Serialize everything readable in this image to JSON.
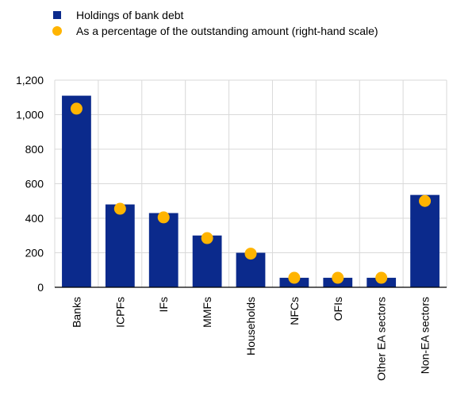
{
  "legend": {
    "bar_label": "Holdings of bank debt",
    "dot_label": "As a percentage of the outstanding amount (right-hand scale)"
  },
  "colors": {
    "bar": "#0b2a8c",
    "dot": "#ffb400",
    "grid": "#d9d9d9",
    "axis": "#000000"
  },
  "chart_data": {
    "type": "bar",
    "title": "",
    "xlabel": "",
    "ylabel": "",
    "categories": [
      "Banks",
      "ICPFs",
      "IFs",
      "MMFs",
      "Households",
      "NFCs",
      "OFIs",
      "Other EA sectors",
      "Non-EA sectors"
    ],
    "ylim": [
      0,
      1200
    ],
    "yticks": [
      "0",
      "200",
      "400",
      "600",
      "800",
      "1,000",
      "1,200"
    ],
    "ytick_values": [
      0,
      200,
      400,
      600,
      800,
      1000,
      1200
    ],
    "grid": true,
    "legend_position": "top-left",
    "series": [
      {
        "name": "Holdings of bank debt",
        "type": "bar",
        "values": [
          1110,
          480,
          430,
          300,
          200,
          55,
          55,
          55,
          535
        ]
      },
      {
        "name": "As a percentage of the outstanding amount (right-hand scale)",
        "type": "scatter",
        "values": [
          1035,
          455,
          405,
          285,
          195,
          55,
          55,
          55,
          500
        ]
      }
    ]
  }
}
